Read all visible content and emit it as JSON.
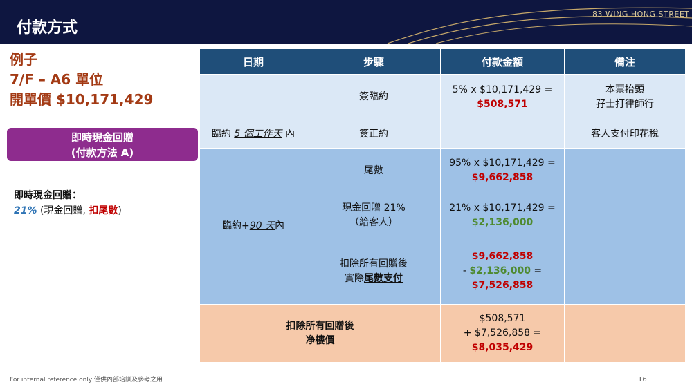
{
  "header": {
    "title": "付款方式",
    "brand": "83 WING HONG STREET"
  },
  "left": {
    "title_line1": "例子",
    "title_line2": "7/F – A6 單位",
    "title_line3": "開單價 $10,171,429",
    "pill_line1": "即時現金回贈",
    "pill_line2": "(付款方法 A)",
    "note_heading": "即時現金回贈：",
    "note_pct": "21%",
    "note_open": " (現金回贈,  ",
    "note_red": "扣尾數",
    "note_close": ")"
  },
  "table": {
    "headers": [
      "日期",
      "步驟",
      "付款金額",
      "備注"
    ],
    "row1": {
      "step": "簽臨約",
      "amount_line1": "5% x $10,171,429 =",
      "amount_line2": "$508,571",
      "remark_line1": "本票抬頭",
      "remark_line2": "孖士打律師行"
    },
    "row2": {
      "date_prefix": "臨約 ",
      "date_italic": "5 個工作天",
      "date_suffix": " 內",
      "step": "簽正約",
      "remark": "客人支付印花稅"
    },
    "group": {
      "date_prefix": "臨約+",
      "date_italic": "90 天",
      "date_suffix": "內"
    },
    "row3": {
      "step": "尾數",
      "amount_line1": "95% x $10,171,429 =",
      "amount_line2": "$9,662,858"
    },
    "row4": {
      "step_line1": "現金回贈 21%",
      "step_line2": "（給客人）",
      "amount_line1": "21% x $10,171,429 =",
      "amount_line2": "$2,136,000"
    },
    "row5": {
      "step_line1": "扣除所有回贈後",
      "step_line2_a": "實際",
      "step_line2_b": "尾數支付",
      "amount_line1": "$9,662,858",
      "amount_line2_prefix": "- ",
      "amount_line2_value": "$2,136,000",
      "amount_line2_suffix": " =",
      "amount_line3": "$7,526,858"
    },
    "total": {
      "label_line1": "扣除所有回贈後",
      "label_line2": "净樓價",
      "amount_line1": "$508,571",
      "amount_line2": "+ $7,526,858 =",
      "amount_line3": "$8,035,429"
    }
  },
  "footer": {
    "text": "For internal reference only 僅供內部培訓及參考之用",
    "page": "16"
  },
  "colors": {
    "header_bg": "#0e1640",
    "table_header": "#1f4e79",
    "light_blue": "#dbe8f6",
    "mid_blue": "#9ec1e6",
    "orange": "#f6c9aa",
    "red": "#c00000",
    "green": "#4e8a2f",
    "pill": "#8e2c8e",
    "title": "#a33a14"
  }
}
